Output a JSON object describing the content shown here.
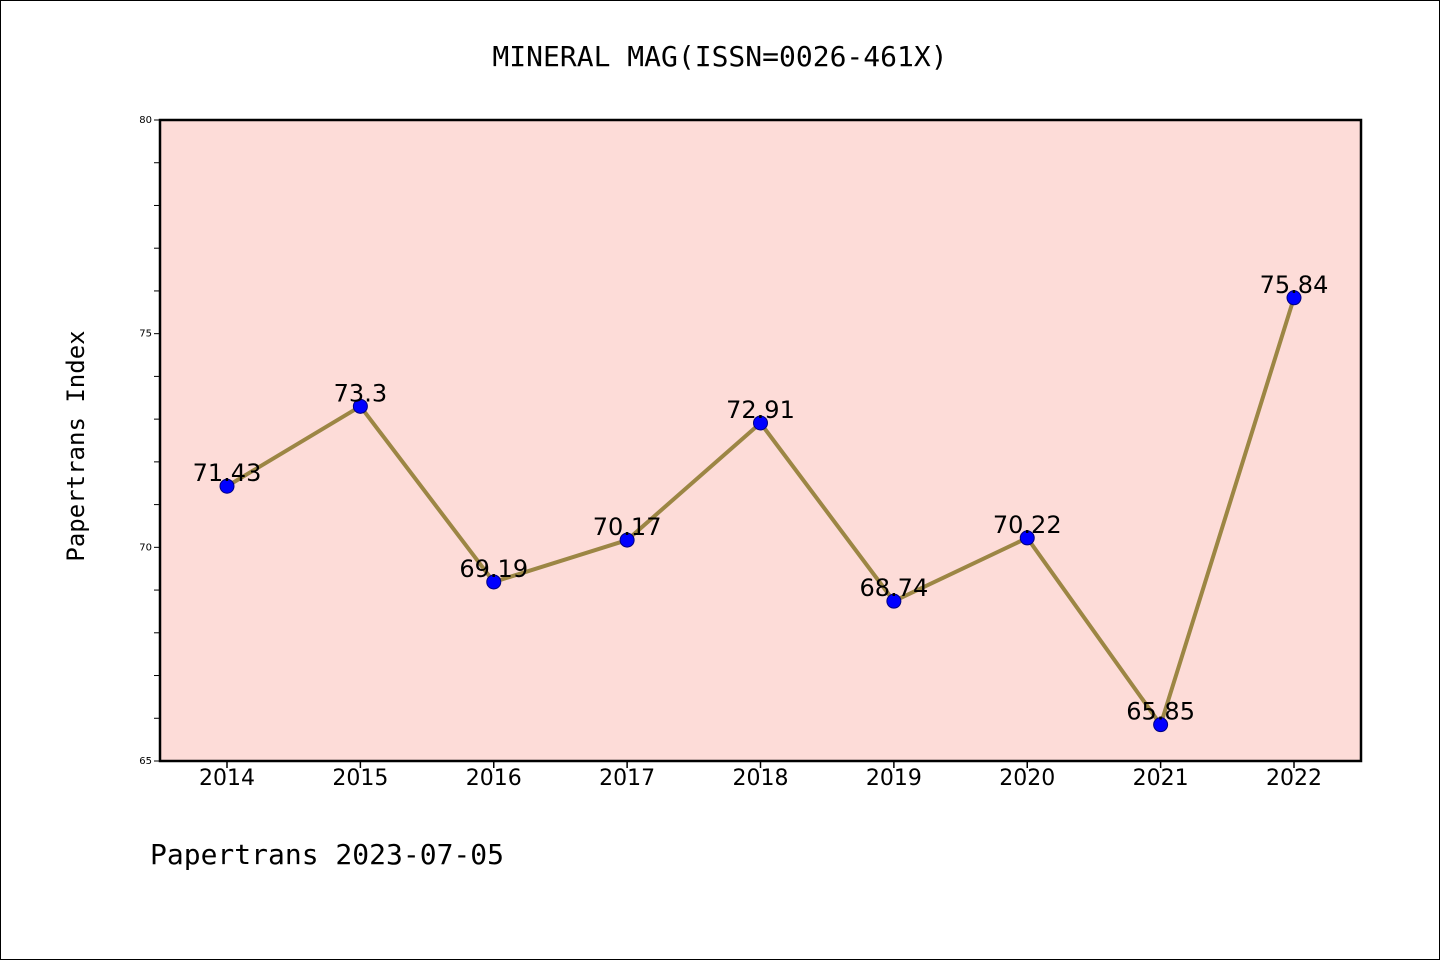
{
  "chart_data": {
    "type": "line",
    "title": "MINERAL MAG(ISSN=0026-461X)",
    "xlabel": "",
    "ylabel": "Papertrans Index",
    "categories": [
      "2014",
      "2015",
      "2016",
      "2017",
      "2018",
      "2019",
      "2020",
      "2021",
      "2022"
    ],
    "series": [
      {
        "values": [
          71.43,
          73.3,
          69.19,
          70.17,
          72.91,
          68.74,
          70.22,
          65.85,
          75.84
        ],
        "labels": [
          "71.43",
          "73.3",
          "69.19",
          "70.17",
          "72.91",
          "68.74",
          "70.22",
          "65.85",
          "75.84"
        ]
      }
    ],
    "ylim": [
      65,
      80
    ],
    "y_ticks": [
      "65",
      "70",
      "75",
      "80"
    ],
    "y_minor_step": 1,
    "grid": false,
    "legend": "none",
    "colors": {
      "plot_background": "#fddcd8",
      "line": "#9c8644",
      "marker": "#0000ff",
      "marker_edge": "#000080",
      "axes": "#000000"
    }
  },
  "footer": {
    "text": "Papertrans 2023-07-05"
  }
}
